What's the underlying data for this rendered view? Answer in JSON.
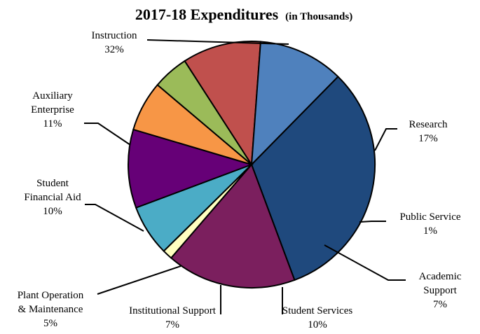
{
  "chart_data": {
    "type": "pie",
    "title": "2017-18 Expenditures",
    "subtitle": "(in Thousands)",
    "slices": [
      {
        "label": "Instruction",
        "lines": [
          "Instruction"
        ],
        "percent_label": "32%",
        "value": 32,
        "color": "#1F497D"
      },
      {
        "label": "Research",
        "lines": [
          "Research"
        ],
        "percent_label": "17%",
        "value": 17,
        "color": "#7B1F5E"
      },
      {
        "label": "Public Service",
        "lines": [
          "Public Service"
        ],
        "percent_label": "1%",
        "value": 1.3,
        "color": "#FFFFC0"
      },
      {
        "label": "Academic Support",
        "lines": [
          "Academic",
          "Support"
        ],
        "percent_label": "7%",
        "value": 6.7,
        "color": "#4BACC6"
      },
      {
        "label": "Student Services",
        "lines": [
          "Student Services"
        ],
        "percent_label": "10%",
        "value": 10.3,
        "color": "#660077"
      },
      {
        "label": "Institutional Support",
        "lines": [
          "Institutional Support"
        ],
        "percent_label": "7%",
        "value": 6.6,
        "color": "#F79646"
      },
      {
        "label": "Plant Operation & Maintenance",
        "lines": [
          "Plant Operation",
          "& Maintenance"
        ],
        "percent_label": "5%",
        "value": 4.7,
        "color": "#9BBB59"
      },
      {
        "label": "Student Financial Aid",
        "lines": [
          "Student",
          "Financial Aid"
        ],
        "percent_label": "10%",
        "value": 10.3,
        "color": "#C0504D"
      },
      {
        "label": "Auxiliary Enterprise",
        "lines": [
          "Auxiliary",
          "Enterprise"
        ],
        "percent_label": "11%",
        "value": 11.2,
        "color": "#4F81BD"
      }
    ]
  }
}
